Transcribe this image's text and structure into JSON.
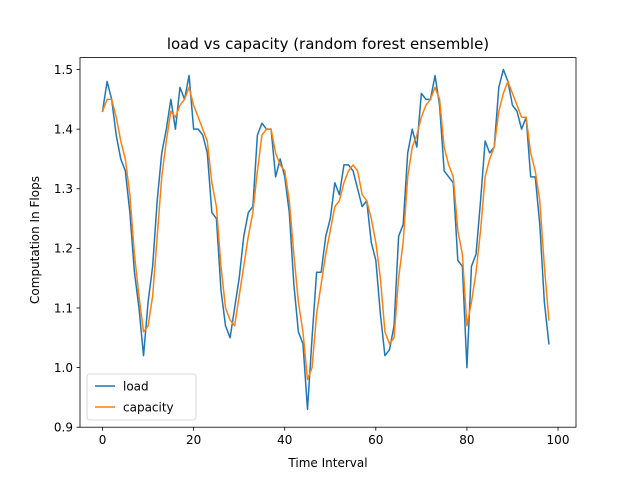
{
  "chart_data": {
    "type": "line",
    "title": "load vs capacity (random forest ensemble)",
    "xlabel": "Time Interval",
    "ylabel": "Computation In Flops",
    "xlim": [
      -4.95,
      103.95
    ],
    "ylim": [
      0.9,
      1.52
    ],
    "xticks": [
      0,
      20,
      40,
      60,
      80,
      100
    ],
    "yticks": [
      0.9,
      1.0,
      1.1,
      1.2,
      1.3,
      1.4,
      1.5
    ],
    "ytick_labels": [
      "0.9",
      "1.0",
      "1.1",
      "1.2",
      "1.3",
      "1.4",
      "1.5"
    ],
    "grid": false,
    "legend": "lower-left",
    "series": [
      {
        "name": "load",
        "color": "#1f77b4",
        "values": [
          1.43,
          1.48,
          1.45,
          1.39,
          1.35,
          1.33,
          1.26,
          1.16,
          1.1,
          1.02,
          1.11,
          1.17,
          1.28,
          1.36,
          1.4,
          1.45,
          1.4,
          1.47,
          1.45,
          1.49,
          1.4,
          1.4,
          1.39,
          1.36,
          1.26,
          1.25,
          1.13,
          1.07,
          1.05,
          1.1,
          1.15,
          1.22,
          1.26,
          1.27,
          1.39,
          1.41,
          1.4,
          1.4,
          1.32,
          1.35,
          1.32,
          1.26,
          1.14,
          1.06,
          1.04,
          0.93,
          1.05,
          1.16,
          1.16,
          1.22,
          1.25,
          1.31,
          1.29,
          1.34,
          1.34,
          1.33,
          1.3,
          1.27,
          1.28,
          1.21,
          1.18,
          1.09,
          1.02,
          1.03,
          1.07,
          1.22,
          1.24,
          1.36,
          1.4,
          1.37,
          1.46,
          1.45,
          1.45,
          1.49,
          1.44,
          1.33,
          1.32,
          1.31,
          1.18,
          1.17,
          1.0,
          1.17,
          1.19,
          1.28,
          1.38,
          1.36,
          1.37,
          1.47,
          1.5,
          1.48,
          1.44,
          1.43,
          1.4,
          1.42,
          1.32,
          1.32,
          1.24,
          1.11,
          1.04
        ]
      },
      {
        "name": "capacity",
        "color": "#ff7f0e",
        "values": [
          1.43,
          1.45,
          1.45,
          1.42,
          1.38,
          1.35,
          1.29,
          1.19,
          1.12,
          1.06,
          1.07,
          1.12,
          1.22,
          1.32,
          1.38,
          1.43,
          1.42,
          1.44,
          1.45,
          1.47,
          1.44,
          1.42,
          1.4,
          1.38,
          1.31,
          1.27,
          1.17,
          1.1,
          1.08,
          1.07,
          1.12,
          1.17,
          1.22,
          1.26,
          1.33,
          1.39,
          1.4,
          1.4,
          1.36,
          1.34,
          1.33,
          1.28,
          1.19,
          1.11,
          1.06,
          0.98,
          1.0,
          1.09,
          1.14,
          1.19,
          1.23,
          1.27,
          1.28,
          1.31,
          1.33,
          1.34,
          1.33,
          1.29,
          1.28,
          1.25,
          1.21,
          1.15,
          1.06,
          1.04,
          1.05,
          1.15,
          1.21,
          1.32,
          1.37,
          1.39,
          1.42,
          1.44,
          1.45,
          1.47,
          1.45,
          1.37,
          1.34,
          1.32,
          1.23,
          1.19,
          1.07,
          1.11,
          1.16,
          1.23,
          1.32,
          1.35,
          1.37,
          1.43,
          1.46,
          1.48,
          1.46,
          1.44,
          1.42,
          1.42,
          1.36,
          1.33,
          1.28,
          1.17,
          1.08
        ]
      }
    ]
  }
}
